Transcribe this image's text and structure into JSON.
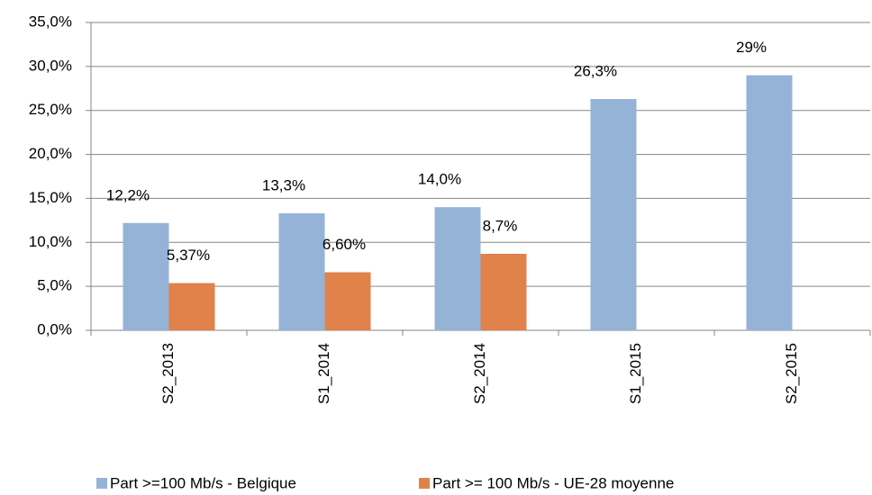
{
  "chart_data": {
    "type": "bar",
    "categories": [
      "S2_2013",
      "S1_2014",
      "S2_2014",
      "S1_2015",
      "S2_2015"
    ],
    "series": [
      {
        "name": "Part >=100 Mb/s - Belgique",
        "color": "#95b3d7",
        "values": [
          12.2,
          13.3,
          14.0,
          26.3,
          29
        ],
        "value_labels": [
          "12,2%",
          "13,3%",
          "14,0%",
          "26,3%",
          "29%"
        ]
      },
      {
        "name": "Part >= 100 Mb/s - UE-28 moyenne",
        "color": "#e0824a",
        "values": [
          5.37,
          6.6,
          8.7,
          null,
          null
        ],
        "value_labels": [
          "5,37%",
          "6,60%",
          "8,7%",
          null,
          null
        ]
      }
    ],
    "ylim": [
      0,
      35
    ],
    "yticks": [
      {
        "value": 0,
        "label": "0,0%"
      },
      {
        "value": 5,
        "label": "5,0%"
      },
      {
        "value": 10,
        "label": "10,0%"
      },
      {
        "value": 15,
        "label": "15,0%"
      },
      {
        "value": 20,
        "label": "20,0%"
      },
      {
        "value": 25,
        "label": "25,0%"
      },
      {
        "value": 30,
        "label": "30,0%"
      },
      {
        "value": 35,
        "label": "35,0%"
      }
    ],
    "grid": true,
    "legend": "bottom"
  }
}
